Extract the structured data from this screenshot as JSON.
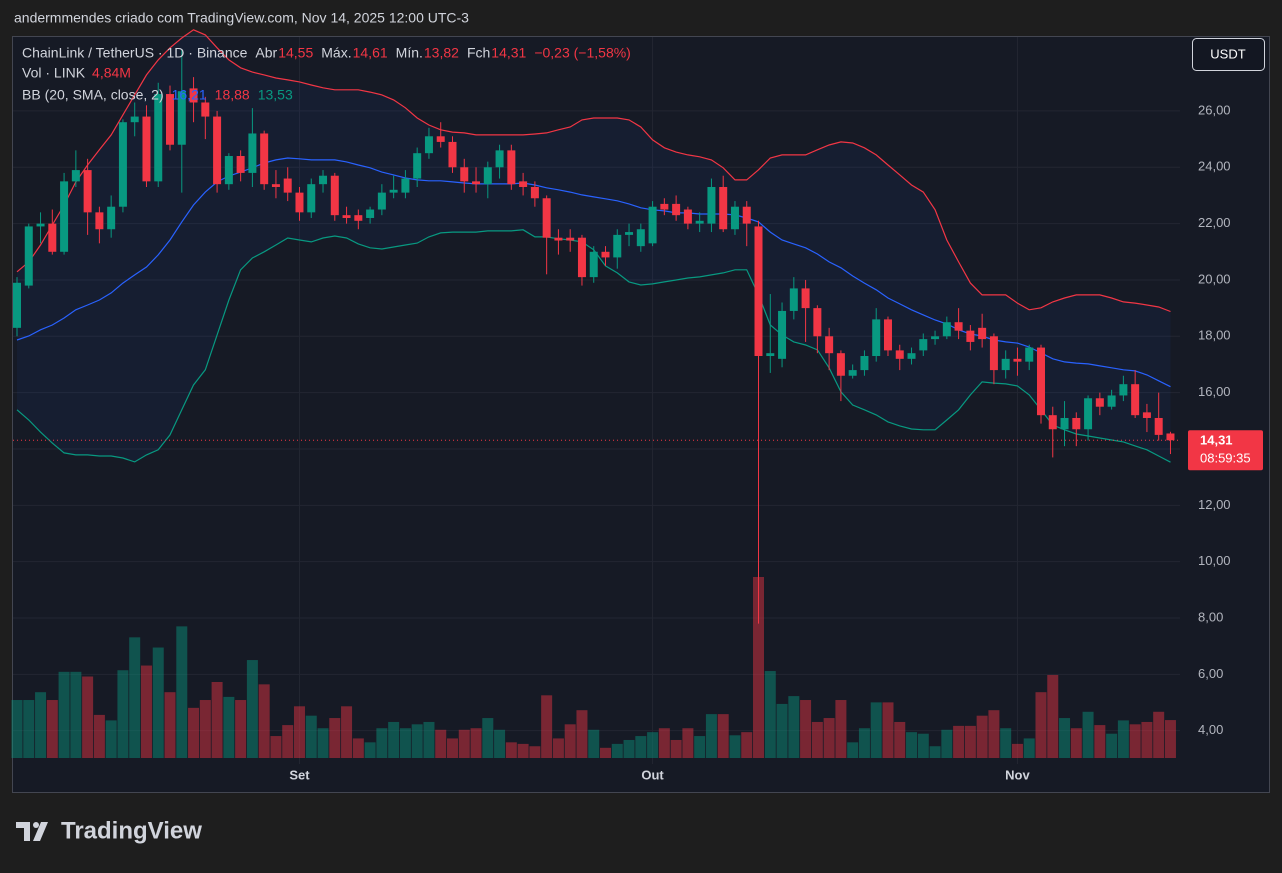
{
  "header": {
    "caption": "andermmendes criado com TradingView.com, Nov 14, 2025 12:00 UTC-3",
    "currency_button": "USDT",
    "brand": "TradingView"
  },
  "chart_data": {
    "type": "candlestick",
    "legend": {
      "symbol": "ChainLink / TetherUS · 1D · Binance",
      "ohlc": [
        {
          "label": "Abr",
          "value": "14,55"
        },
        {
          "label": "Máx.",
          "value": "14,61"
        },
        {
          "label": "Mín.",
          "value": "13,82"
        },
        {
          "label": "Fch",
          "value": "14,31"
        }
      ],
      "change": "−0,23 (−1,58%)",
      "volume_title": "Vol · LINK",
      "volume_value": "4,84M",
      "bb_title": "BB (20, SMA, close, 2)",
      "bb_values": [
        "16,21",
        "18,88",
        "13,53"
      ]
    },
    "categories": [
      null,
      null,
      null,
      null,
      null,
      null,
      null,
      null,
      null,
      null,
      null,
      null,
      null,
      null,
      null,
      null,
      null,
      null,
      null,
      null,
      null,
      null,
      null,
      null,
      "Set",
      null,
      null,
      null,
      null,
      null,
      null,
      null,
      null,
      null,
      null,
      null,
      null,
      null,
      null,
      null,
      null,
      null,
      null,
      null,
      null,
      null,
      null,
      null,
      null,
      null,
      null,
      null,
      null,
      null,
      "Out",
      null,
      null,
      null,
      null,
      null,
      null,
      null,
      null,
      null,
      null,
      null,
      null,
      null,
      null,
      null,
      null,
      null,
      null,
      null,
      null,
      null,
      null,
      null,
      null,
      null,
      null,
      null,
      null,
      null,
      null,
      "Nov",
      null,
      null,
      null,
      null,
      null,
      null,
      null,
      null,
      null,
      null,
      null,
      null,
      null
    ],
    "open": [
      18.3,
      19.8,
      21.9,
      22.0,
      21.0,
      23.5,
      23.9,
      22.4,
      21.8,
      22.6,
      25.6,
      25.8,
      23.5,
      26.6,
      24.8,
      26.8,
      26.3,
      25.8,
      23.4,
      24.4,
      23.8,
      25.2,
      23.4,
      23.6,
      23.1,
      22.4,
      23.4,
      23.7,
      22.3,
      22.3,
      22.2,
      22.5,
      23.1,
      23.1,
      23.6,
      24.5,
      25.1,
      24.9,
      24.0,
      23.5,
      23.4,
      24.0,
      24.6,
      23.5,
      23.3,
      22.9,
      21.5,
      21.5,
      21.5,
      20.1,
      21.0,
      20.8,
      21.6,
      21.2,
      21.3,
      22.7,
      22.7,
      22.5,
      22.0,
      22.0,
      23.3,
      21.8,
      22.6,
      21.9,
      17.3,
      17.2,
      18.9,
      19.7,
      19.0,
      18.0,
      17.4,
      16.6,
      16.8,
      17.3,
      18.6,
      17.5,
      17.2,
      17.5,
      17.9,
      18.0,
      18.5,
      18.2,
      18.3,
      18.0,
      16.8,
      17.2,
      17.1,
      17.6,
      15.2,
      14.7,
      15.1,
      14.7,
      15.8,
      15.5,
      15.9,
      16.3,
      15.3,
      15.1,
      14.55
    ],
    "high": [
      20.1,
      22.0,
      22.4,
      22.5,
      23.8,
      24.6,
      24.3,
      22.6,
      23.0,
      25.7,
      26.3,
      26.2,
      27.0,
      26.9,
      28.2,
      27.2,
      26.5,
      26.0,
      24.5,
      24.6,
      26.1,
      25.3,
      23.9,
      24.0,
      23.3,
      23.6,
      23.9,
      23.8,
      22.6,
      22.5,
      22.6,
      23.4,
      23.7,
      23.9,
      24.7,
      25.4,
      25.6,
      25.1,
      24.3,
      24.0,
      24.2,
      24.8,
      24.8,
      23.8,
      23.5,
      23.0,
      21.8,
      21.8,
      21.6,
      21.2,
      21.2,
      21.8,
      22.0,
      22.0,
      22.8,
      22.9,
      23.0,
      22.6,
      22.4,
      23.6,
      23.7,
      22.8,
      22.8,
      22.1,
      19.5,
      19.2,
      20.1,
      20.0,
      19.1,
      18.3,
      17.5,
      17.0,
      17.5,
      19.0,
      18.7,
      17.7,
      17.6,
      18.1,
      18.2,
      18.7,
      19.0,
      18.4,
      18.8,
      18.1,
      17.5,
      17.6,
      17.7,
      17.7,
      15.5,
      15.7,
      15.3,
      15.9,
      16.0,
      16.1,
      16.6,
      16.8,
      15.6,
      16.0,
      14.61
    ],
    "low": [
      18.0,
      19.7,
      21.3,
      20.9,
      20.9,
      23.3,
      21.6,
      21.3,
      21.5,
      22.4,
      25.1,
      23.3,
      23.3,
      24.6,
      23.1,
      25.6,
      25.0,
      23.1,
      23.2,
      23.5,
      23.3,
      23.2,
      22.9,
      22.8,
      22.1,
      22.2,
      23.1,
      22.1,
      22.0,
      21.8,
      22.0,
      22.3,
      22.9,
      22.9,
      23.3,
      24.3,
      24.7,
      23.8,
      23.1,
      23.1,
      22.9,
      23.6,
      23.2,
      23.0,
      22.6,
      20.2,
      20.9,
      21.0,
      19.8,
      19.9,
      20.5,
      20.4,
      21.2,
      21.0,
      21.2,
      22.3,
      22.1,
      21.8,
      21.7,
      21.7,
      21.7,
      21.6,
      21.2,
      7.8,
      16.7,
      16.9,
      18.6,
      17.8,
      17.4,
      16.8,
      15.7,
      16.5,
      16.6,
      17.1,
      17.3,
      16.8,
      17.0,
      17.3,
      17.7,
      17.9,
      17.9,
      17.5,
      17.6,
      16.3,
      16.5,
      16.6,
      16.8,
      14.9,
      13.7,
      14.1,
      14.1,
      14.3,
      15.2,
      15.4,
      15.7,
      15.1,
      14.6,
      14.3,
      13.82
    ],
    "close": [
      19.9,
      21.9,
      22.0,
      21.0,
      23.5,
      23.9,
      22.4,
      21.8,
      22.6,
      25.6,
      25.8,
      23.5,
      26.6,
      24.8,
      26.7,
      26.3,
      25.8,
      23.4,
      24.4,
      23.8,
      25.2,
      23.4,
      23.3,
      23.1,
      22.4,
      23.4,
      23.7,
      22.3,
      22.2,
      22.1,
      22.5,
      23.1,
      23.2,
      23.6,
      24.5,
      25.1,
      24.9,
      24.0,
      23.5,
      23.4,
      24.0,
      24.6,
      23.4,
      23.3,
      22.9,
      21.5,
      21.4,
      21.4,
      20.1,
      21.0,
      20.8,
      21.6,
      21.7,
      21.8,
      22.6,
      22.5,
      22.3,
      22.0,
      22.1,
      23.3,
      21.8,
      22.6,
      22.0,
      17.3,
      17.4,
      18.9,
      19.7,
      19.0,
      18.0,
      17.4,
      16.6,
      16.8,
      17.3,
      18.6,
      17.5,
      17.2,
      17.4,
      17.9,
      18.0,
      18.5,
      18.2,
      17.8,
      17.9,
      16.8,
      17.2,
      17.1,
      17.6,
      15.2,
      14.7,
      15.1,
      14.7,
      15.8,
      15.5,
      15.9,
      16.3,
      15.2,
      15.1,
      14.5,
      14.31
    ],
    "up_color": "#089981",
    "down_color": "#f23645",
    "volume": {
      "values": [
        7.4,
        7.4,
        8.4,
        7.4,
        11.0,
        11.0,
        10.4,
        5.5,
        4.8,
        11.2,
        15.4,
        11.8,
        14.1,
        8.4,
        16.8,
        6.4,
        7.4,
        9.7,
        7.8,
        7.4,
        12.5,
        9.4,
        2.8,
        4.2,
        6.6,
        5.4,
        3.8,
        5.1,
        6.6,
        2.5,
        2.0,
        3.8,
        4.6,
        3.8,
        4.3,
        4.6,
        3.6,
        2.5,
        3.6,
        3.8,
        5.1,
        3.6,
        2.0,
        1.8,
        1.5,
        8.0,
        2.5,
        4.3,
        6.1,
        3.6,
        1.3,
        1.8,
        2.3,
        2.8,
        3.3,
        3.8,
        2.3,
        3.8,
        2.8,
        5.6,
        5.6,
        2.9,
        3.3,
        23.1,
        11.1,
        6.9,
        7.9,
        7.4,
        4.6,
        5.1,
        7.4,
        2.0,
        3.8,
        7.1,
        7.1,
        4.6,
        3.3,
        3.1,
        1.5,
        3.6,
        4.1,
        4.1,
        5.4,
        6.1,
        3.8,
        1.8,
        2.5,
        8.4,
        10.6,
        5.1,
        3.8,
        5.9,
        4.2,
        3.1,
        4.8,
        4.3,
        4.6,
        5.9,
        4.84
      ]
    },
    "bollinger": {
      "basis": {
        "color": "#2962ff",
        "values": [
          17.87,
          18.01,
          18.23,
          18.4,
          18.65,
          18.94,
          19.11,
          19.29,
          19.54,
          19.89,
          20.18,
          20.46,
          20.89,
          21.42,
          22.06,
          22.66,
          23.12,
          23.48,
          23.69,
          23.83,
          23.98,
          24.15,
          24.26,
          24.33,
          24.3,
          24.26,
          24.26,
          24.26,
          24.19,
          24.08,
          23.98,
          23.83,
          23.73,
          23.62,
          23.55,
          23.52,
          23.52,
          23.48,
          23.44,
          23.41,
          23.41,
          23.41,
          23.41,
          23.44,
          23.37,
          23.27,
          23.2,
          23.12,
          23.02,
          22.95,
          22.88,
          22.81,
          22.7,
          22.56,
          22.49,
          22.45,
          22.38,
          22.38,
          22.34,
          22.34,
          22.34,
          22.31,
          22.2,
          22.06,
          21.7,
          21.42,
          21.28,
          21.14,
          20.92,
          20.64,
          20.43,
          20.14,
          19.89,
          19.65,
          19.36,
          19.15,
          18.94,
          18.76,
          18.58,
          18.44,
          18.23,
          18.08,
          18.01,
          17.87,
          17.8,
          17.76,
          17.62,
          17.41,
          17.2,
          17.09,
          17.05,
          17.02,
          16.95,
          16.88,
          16.81,
          16.77,
          16.63,
          16.42,
          16.21
        ]
      },
      "upper": {
        "color": "#f23645",
        "values": [
          20.29,
          20.64,
          21.24,
          21.95,
          22.66,
          23.48,
          24.08,
          24.62,
          25.15,
          25.86,
          26.57,
          27.28,
          27.81,
          28.24,
          28.59,
          28.88,
          28.7,
          28.24,
          27.81,
          27.53,
          27.38,
          27.28,
          27.17,
          27.1,
          27.03,
          26.92,
          26.82,
          26.75,
          26.75,
          26.75,
          26.67,
          26.57,
          26.39,
          26.11,
          25.75,
          25.5,
          25.33,
          25.25,
          25.22,
          25.15,
          25.15,
          25.15,
          25.15,
          25.15,
          25.18,
          25.22,
          25.33,
          25.43,
          25.68,
          25.75,
          25.75,
          25.75,
          25.68,
          25.43,
          24.97,
          24.69,
          24.54,
          24.44,
          24.37,
          24.26,
          23.98,
          23.55,
          23.55,
          23.91,
          24.33,
          24.44,
          24.44,
          24.44,
          24.62,
          24.79,
          24.9,
          24.86,
          24.69,
          24.44,
          24.08,
          23.73,
          23.37,
          23.12,
          22.49,
          21.42,
          20.64,
          19.89,
          19.47,
          19.47,
          19.47,
          19.18,
          18.94,
          19.01,
          19.22,
          19.36,
          19.47,
          19.47,
          19.47,
          19.36,
          19.22,
          19.18,
          19.11,
          19.04,
          18.88
        ]
      },
      "lower": {
        "color": "#089981",
        "values": [
          15.39,
          15.03,
          14.6,
          14.21,
          13.86,
          13.79,
          13.79,
          13.75,
          13.75,
          13.68,
          13.54,
          13.79,
          13.97,
          14.5,
          15.39,
          16.27,
          16.81,
          18.05,
          19.29,
          20.36,
          20.78,
          21.0,
          21.24,
          21.49,
          21.42,
          21.35,
          21.49,
          21.56,
          21.49,
          21.28,
          21.14,
          21.1,
          21.17,
          21.24,
          21.31,
          21.53,
          21.67,
          21.7,
          21.7,
          21.7,
          21.74,
          21.74,
          21.74,
          21.78,
          21.53,
          21.53,
          21.46,
          21.42,
          21.35,
          21.07,
          20.5,
          20.25,
          19.93,
          19.82,
          19.86,
          19.93,
          20.0,
          20.07,
          20.11,
          20.18,
          20.25,
          20.36,
          20.36,
          19.47,
          18.4,
          18.05,
          17.8,
          17.69,
          17.52,
          16.88,
          16.03,
          15.56,
          15.39,
          15.21,
          14.96,
          14.82,
          14.71,
          14.68,
          14.68,
          15.03,
          15.39,
          15.92,
          16.38,
          16.34,
          16.31,
          16.24,
          15.92,
          15.39,
          14.85,
          14.68,
          14.53,
          14.46,
          14.39,
          14.32,
          14.25,
          14.11,
          13.97,
          13.75,
          13.53
        ]
      }
    },
    "ylim": [
      3.03,
      28.66
    ],
    "yticks": [
      {
        "value": 4,
        "label": "4,00"
      },
      {
        "value": 6,
        "label": "6,00"
      },
      {
        "value": 8,
        "label": "8,00"
      },
      {
        "value": 10,
        "label": "10,00"
      },
      {
        "value": 12,
        "label": "12,00"
      },
      {
        "value": 14,
        "label": "14,00"
      },
      {
        "value": 16,
        "label": "16,00"
      },
      {
        "value": 18,
        "label": "18,00"
      },
      {
        "value": 20,
        "label": "20,00"
      },
      {
        "value": 22,
        "label": "22,00"
      },
      {
        "value": 24,
        "label": "24,00"
      },
      {
        "value": 26,
        "label": "26,00"
      }
    ],
    "last_price": {
      "label": "14,31",
      "countdown": "08:59:35"
    },
    "grid": true
  }
}
